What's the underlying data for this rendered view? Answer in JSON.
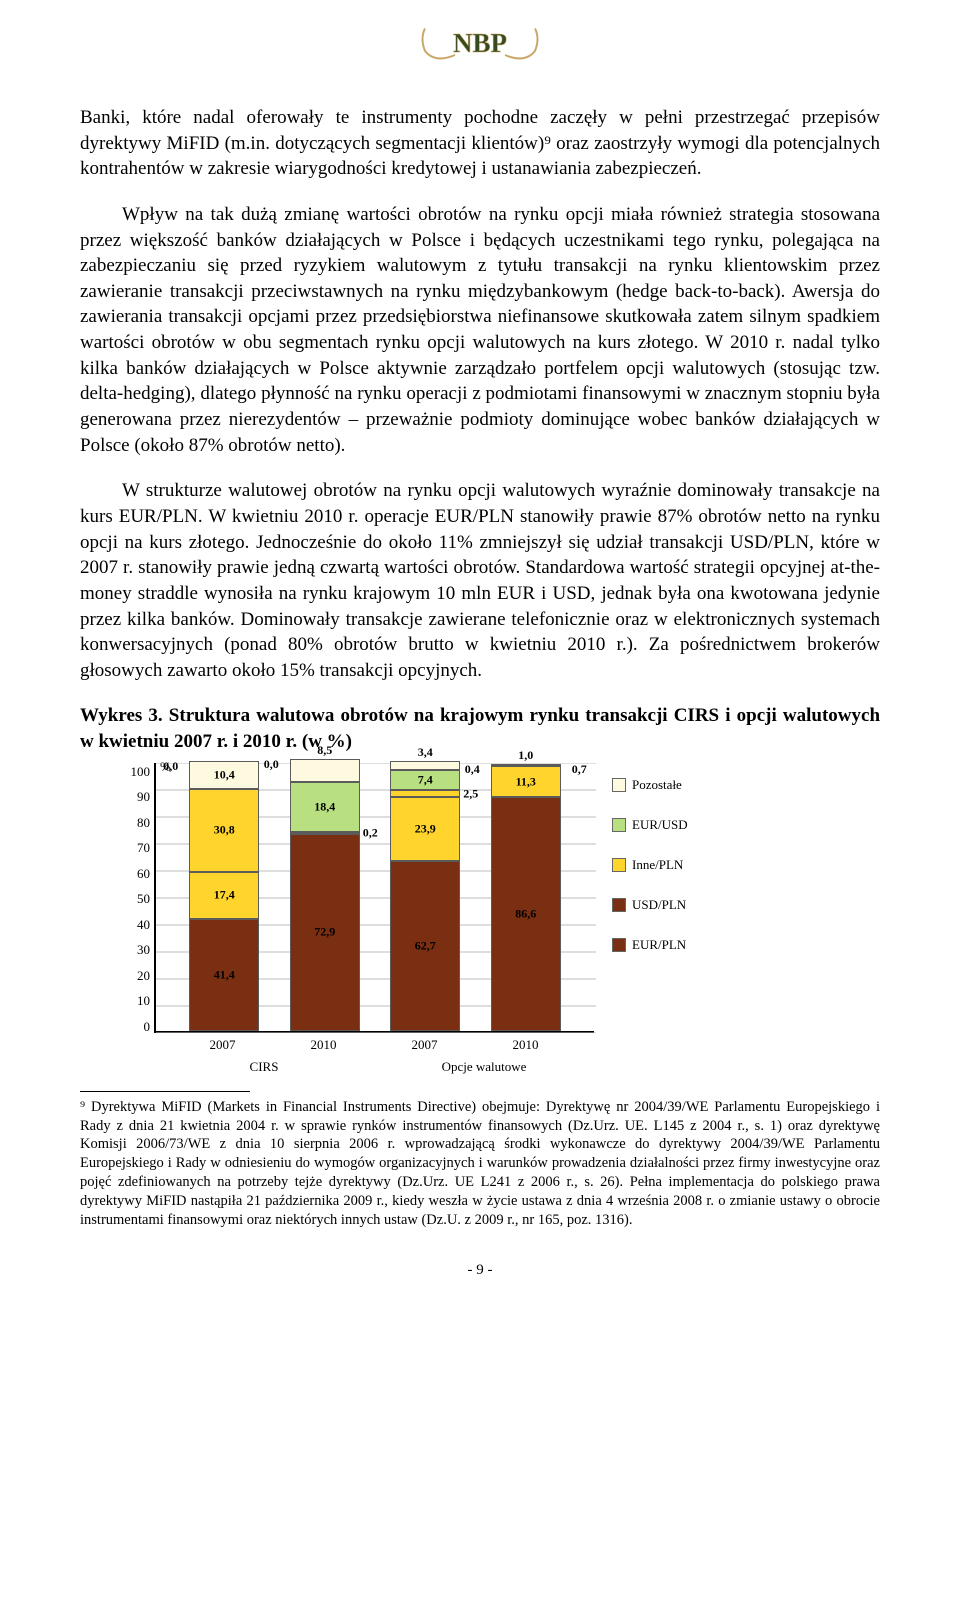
{
  "logo_text": "NBP",
  "paragraphs": {
    "p1": "Banki, które nadal oferowały te instrumenty pochodne zaczęły w pełni przestrzegać przepisów dyrektywy MiFID (m.in. dotyczących segmentacji klientów)⁹ oraz zaostrzyły wymogi dla potencjalnych kontrahentów w zakresie wiarygodności kredytowej i ustanawiania zabezpieczeń.",
    "p2": "Wpływ na tak dużą zmianę wartości obrotów na rynku opcji miała również strategia stosowana przez większość banków działających w Polsce i będących uczestnikami tego rynku, polegająca na zabezpieczaniu się przed ryzykiem walutowym z tytułu transakcji na rynku klientowskim przez zawieranie transakcji przeciwstawnych na rynku międzybankowym (hedge back-to-back). Awersja do zawierania transakcji opcjami przez przedsiębiorstwa niefinansowe skutkowała zatem silnym spadkiem wartości obrotów w obu segmentach rynku opcji walutowych na kurs złotego. W 2010 r. nadal tylko kilka banków działających w Polsce aktywnie zarządzało portfelem opcji walutowych (stosując tzw. delta-hedging), dlatego płynność na rynku operacji z podmiotami finansowymi w znacznym stopniu była generowana przez nierezydentów – przeważnie podmioty dominujące wobec banków działających w Polsce (około 87% obrotów netto).",
    "p3": "W strukturze walutowej obrotów na rynku opcji walutowych wyraźnie dominowały transakcje na kurs EUR/PLN. W kwietniu 2010 r. operacje EUR/PLN stanowiły prawie 87% obrotów netto na rynku opcji na kurs złotego. Jednocześnie do około 11% zmniejszył się udział transakcji USD/PLN, które w 2007 r. stanowiły prawie jedną czwartą wartości obrotów. Standardowa wartość strategii opcyjnej at-the-money straddle wynosiła na rynku krajowym 10 mln EUR i USD, jednak była ona kwotowana jedynie przez kilka banków. Dominowały transakcje zawierane telefonicznie oraz w elektronicznych systemach konwersacyjnych (ponad 80% obrotów brutto w kwietniu 2010 r.). Za pośrednictwem brokerów głosowych zawarto około 15% transakcji opcyjnych."
  },
  "chart_title_bold_prefix": "Wykres 3.",
  "chart_title_bold_rest": " Struktura walutowa obrotów na krajowym rynku transakcji CIRS i opcji walutowych w kwietniu 2007 r. i 2010 r. (w %)",
  "chart": {
    "ylim": [
      0,
      100
    ],
    "ytick_step": 10,
    "yticks": [
      "100",
      "90",
      "80",
      "70",
      "60",
      "50",
      "40",
      "30",
      "20",
      "10",
      "0"
    ],
    "pct_symbol": "%",
    "colors": {
      "EUR_PLN": "#7a2e12",
      "USD_PLN": "#7a2e12",
      "Inne_PLN": "#ffd52d",
      "EUR_USD": "#b8e080",
      "Pozostale": "#fdfae0",
      "grid": "#bdbdbd",
      "legend_usd": "#7a2e12"
    },
    "legend": [
      {
        "label": "Pozostałe",
        "color": "#fdfae0"
      },
      {
        "label": "EUR/USD",
        "color": "#b8e080"
      },
      {
        "label": "Inne/PLN",
        "color": "#ffd52d"
      },
      {
        "label": "USD/PLN",
        "color": "#7a2e12"
      },
      {
        "label": "EUR/PLN",
        "color": "#7a2e12"
      }
    ],
    "groups": [
      "2007",
      "2010",
      "2007",
      "2010"
    ],
    "categories": [
      "CIRS",
      "Opcje walutowe"
    ],
    "bars": [
      {
        "outside_left": "0,0",
        "segments": [
          {
            "key": "EUR_PLN",
            "value": 41.4,
            "label": "41,4",
            "pos": "inside"
          },
          {
            "key": "USD_PLN",
            "value": 17.4,
            "label": "17,4",
            "pos": "inside",
            "shade": true
          },
          {
            "key": "Inne_PLN",
            "value": 30.8,
            "label": "30,8",
            "pos": "inside"
          },
          {
            "key": "Pozostale",
            "value": 10.4,
            "label": "10,4",
            "pos": "inside"
          }
        ]
      },
      {
        "outside_left": "0,0",
        "segments": [
          {
            "key": "EUR_PLN",
            "value": 72.9,
            "label": "72,9",
            "pos": "inside"
          },
          {
            "key": "Inne_PLN",
            "value": 0.2,
            "label": "0,2",
            "pos": "right"
          },
          {
            "key": "EUR_USD",
            "value": 18.4,
            "label": "18,4",
            "pos": "inside"
          },
          {
            "key": "Pozostale",
            "value": 8.5,
            "label": "8,5",
            "pos": "above"
          }
        ]
      },
      {
        "segments": [
          {
            "key": "EUR_PLN",
            "value": 62.7,
            "label": "62,7",
            "pos": "inside"
          },
          {
            "key": "USD_PLN",
            "value": 23.9,
            "label": "23,9",
            "pos": "inside",
            "shade": true
          },
          {
            "key": "Inne_PLN",
            "value": 2.5,
            "label": "2,5",
            "pos": "right"
          },
          {
            "key": "EUR_USD",
            "value": 7.4,
            "label": "7,4",
            "pos": "inside"
          },
          {
            "key": "Pozostale",
            "value": 3.4,
            "label": "3,4",
            "pos": "above"
          }
        ]
      },
      {
        "outside_left": "0,4",
        "outside_right": "0,7",
        "segments": [
          {
            "key": "EUR_PLN",
            "value": 86.6,
            "label": "86,6",
            "pos": "inside"
          },
          {
            "key": "USD_PLN",
            "value": 11.3,
            "label": "11,3",
            "pos": "inside",
            "shade": true
          },
          {
            "key": "Pozostale",
            "value": 1.0,
            "label": "1,0",
            "pos": "above"
          }
        ]
      }
    ]
  },
  "footnote": "⁹ Dyrektywa MiFID (Markets in Financial Instruments Directive) obejmuje: Dyrektywę nr 2004/39/WE Parlamentu Europejskiego i Rady z dnia 21 kwietnia 2004 r. w sprawie rynków instrumentów finansowych (Dz.Urz. UE. L145 z 2004 r., s. 1) oraz dyrektywę Komisji 2006/73/WE z dnia 10 sierpnia 2006 r. wprowadzającą środki wykonawcze do dyrektywy 2004/39/WE Parlamentu Europejskiego i Rady w odniesieniu do wymogów organizacyjnych i warunków prowadzenia działalności przez firmy inwestycyjne oraz pojęć zdefiniowanych na potrzeby tejże dyrektywy (Dz.Urz. UE L241 z 2006 r., s. 26). Pełna implementacja do polskiego prawa dyrektywy MiFID nastąpiła 21 października 2009 r., kiedy weszła w życie ustawa z dnia 4 września 2008 r. o zmianie ustawy o obrocie instrumentami finansowymi oraz niektórych innych ustaw (Dz.U. z 2009 r., nr 165, poz. 1316).",
  "page_number": "- 9 -"
}
